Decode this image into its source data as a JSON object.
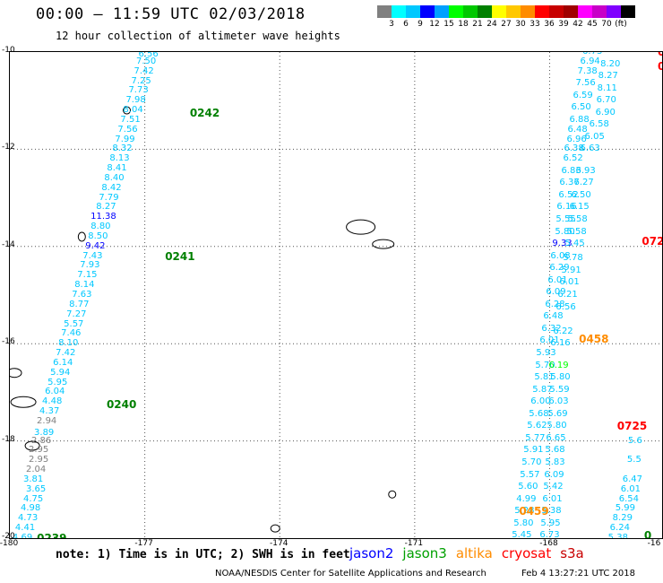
{
  "title": "00:00 – 11:59 UTC 02/03/2018",
  "subtitle": "12 hour collection of altimeter wave heights",
  "legend": {
    "colors": [
      "#808080",
      "#00ffff",
      "#00c8ff",
      "#0000ff",
      "#00a0ff",
      "#00ff00",
      "#00c800",
      "#008000",
      "#ffff00",
      "#ffc800",
      "#ff8c00",
      "#ff0000",
      "#c80000",
      "#a00000",
      "#ff00ff",
      "#c800c8",
      "#8000ff",
      "#000000"
    ],
    "ticks": [
      "3",
      "6",
      "9",
      "12",
      "15",
      "18",
      "21",
      "24",
      "27",
      "30",
      "33",
      "36",
      "39",
      "42",
      "45",
      "70",
      "(ft)"
    ]
  },
  "axes": {
    "lat_labels": [
      "-10",
      "-12",
      "-14",
      "-16",
      "-18",
      "-20"
    ],
    "lon_labels": [
      "-180",
      "-177",
      "-174",
      "-171",
      "-168",
      "-16"
    ]
  },
  "chart_data": {
    "type": "scatter",
    "description_units": "SWH in feet",
    "passes": [
      {
        "id": "0242",
        "satellite": "jason3"
      },
      {
        "id": "0241",
        "satellite": "jason3"
      },
      {
        "id": "0240",
        "satellite": "jason3"
      },
      {
        "id": "0239",
        "satellite": "jason3"
      },
      {
        "id": "0458",
        "satellite": "altika"
      },
      {
        "id": "0459",
        "satellite": "altika"
      },
      {
        "id": "045",
        "satellite": "altika"
      },
      {
        "id": "0724",
        "satellite": "cryosat"
      },
      {
        "id": "0725",
        "satellite": "cryosat"
      },
      {
        "id": "072",
        "satellite": "cryosat"
      }
    ],
    "track_west": [
      {
        "v": "6.56",
        "lon": -176.92,
        "lat": -10.05
      },
      {
        "v": "7.50",
        "lon": -176.97,
        "lat": -10.2
      },
      {
        "v": "7.42",
        "lon": -177.02,
        "lat": -10.4
      },
      {
        "v": "7.25",
        "lon": -177.08,
        "lat": -10.6
      },
      {
        "v": "7.73",
        "lon": -177.14,
        "lat": -10.8
      },
      {
        "v": "7.98",
        "lon": -177.2,
        "lat": -11.0
      },
      {
        "v": "8.04",
        "lon": -177.26,
        "lat": -11.2
      },
      {
        "v": "7.51",
        "lon": -177.32,
        "lat": -11.4
      },
      {
        "v": "7.56",
        "lon": -177.38,
        "lat": -11.6
      },
      {
        "v": "7.99",
        "lon": -177.44,
        "lat": -11.8
      },
      {
        "v": "8.32",
        "lon": -177.5,
        "lat": -12.0
      },
      {
        "v": "8.13",
        "lon": -177.56,
        "lat": -12.2
      },
      {
        "v": "8.41",
        "lon": -177.62,
        "lat": -12.4
      },
      {
        "v": "8.40",
        "lon": -177.68,
        "lat": -12.6
      },
      {
        "v": "8.42",
        "lon": -177.74,
        "lat": -12.8
      },
      {
        "v": "7.79",
        "lon": -177.8,
        "lat": -13.0
      },
      {
        "v": "8.27",
        "lon": -177.86,
        "lat": -13.2
      },
      {
        "v": "11.38",
        "lon": -177.92,
        "lat": -13.4,
        "c": "#0000ff"
      },
      {
        "v": "8.80",
        "lon": -177.98,
        "lat": -13.6
      },
      {
        "v": "8.50",
        "lon": -178.04,
        "lat": -13.8
      },
      {
        "v": "9.42",
        "lon": -178.1,
        "lat": -14.0,
        "c": "#0000ff"
      },
      {
        "v": "7.43",
        "lon": -178.16,
        "lat": -14.2
      },
      {
        "v": "7.93",
        "lon": -178.22,
        "lat": -14.4
      },
      {
        "v": "7.15",
        "lon": -178.28,
        "lat": -14.6
      },
      {
        "v": "8.14",
        "lon": -178.34,
        "lat": -14.8
      },
      {
        "v": "7.63",
        "lon": -178.4,
        "lat": -15.0
      },
      {
        "v": "8.77",
        "lon": -178.46,
        "lat": -15.2
      },
      {
        "v": "7.27",
        "lon": -178.52,
        "lat": -15.4
      },
      {
        "v": "5.57",
        "lon": -178.58,
        "lat": -15.6
      },
      {
        "v": "7.46",
        "lon": -178.64,
        "lat": -15.8
      },
      {
        "v": "8.10",
        "lon": -178.7,
        "lat": -16.0
      },
      {
        "v": "7.42",
        "lon": -178.76,
        "lat": -16.2
      },
      {
        "v": "6.14",
        "lon": -178.82,
        "lat": -16.4
      },
      {
        "v": "5.94",
        "lon": -178.88,
        "lat": -16.6
      },
      {
        "v": "5.95",
        "lon": -178.94,
        "lat": -16.8
      },
      {
        "v": "6.04",
        "lon": -179.0,
        "lat": -17.0
      },
      {
        "v": "4.48",
        "lon": -179.06,
        "lat": -17.2
      },
      {
        "v": "4.37",
        "lon": -179.12,
        "lat": -17.4
      },
      {
        "v": "2.94",
        "lon": -179.18,
        "lat": -17.6,
        "c": "#808080"
      },
      {
        "v": "3.89",
        "lon": -179.24,
        "lat": -17.85
      },
      {
        "v": "2.86",
        "lon": -179.3,
        "lat": -18.0,
        "c": "#808080"
      },
      {
        "v": "2.95",
        "lon": -179.36,
        "lat": -18.2,
        "c": "#808080"
      },
      {
        "v": "2.95",
        "lon": -179.36,
        "lat": -18.4,
        "c": "#808080"
      },
      {
        "v": "2.04",
        "lon": -179.42,
        "lat": -18.6,
        "c": "#808080"
      },
      {
        "v": "3.81",
        "lon": -179.48,
        "lat": -18.8
      },
      {
        "v": "3.65",
        "lon": -179.42,
        "lat": -19.0
      },
      {
        "v": "4.75",
        "lon": -179.48,
        "lat": -19.2
      },
      {
        "v": "4.98",
        "lon": -179.54,
        "lat": -19.4
      },
      {
        "v": "4.73",
        "lon": -179.6,
        "lat": -19.6
      },
      {
        "v": "4.41",
        "lon": -179.66,
        "lat": -19.8
      },
      {
        "v": "4.69",
        "lon": -179.72,
        "lat": -20.0
      }
    ],
    "track_east": [
      {
        "v": "6.73",
        "lon": -167.05,
        "lat": -10.0
      },
      {
        "v": "6.94",
        "lon": -167.1,
        "lat": -10.2
      },
      {
        "v": "7.38",
        "lon": -167.16,
        "lat": -10.4
      },
      {
        "v": "7.56",
        "lon": -167.2,
        "lat": -10.65
      },
      {
        "v": "6.59",
        "lon": -167.26,
        "lat": -10.9
      },
      {
        "v": "6.50",
        "lon": -167.3,
        "lat": -11.15
      },
      {
        "v": "6.88",
        "lon": -167.34,
        "lat": -11.4
      },
      {
        "v": "6.48",
        "lon": -167.38,
        "lat": -11.6
      },
      {
        "v": "6.96",
        "lon": -167.4,
        "lat": -11.8
      },
      {
        "v": "6.38",
        "lon": -167.46,
        "lat": -12.0
      },
      {
        "v": "6.52",
        "lon": -167.48,
        "lat": -12.2
      },
      {
        "v": "6.83",
        "lon": -167.52,
        "lat": -12.45
      },
      {
        "v": "6.37",
        "lon": -167.56,
        "lat": -12.7
      },
      {
        "v": "6.52",
        "lon": -167.58,
        "lat": -12.95
      },
      {
        "v": "6.16",
        "lon": -167.62,
        "lat": -13.2
      },
      {
        "v": "5.55",
        "lon": -167.64,
        "lat": -13.45
      },
      {
        "v": "5.80",
        "lon": -167.66,
        "lat": -13.7
      },
      {
        "v": "9.33",
        "lon": -167.72,
        "lat": -13.95,
        "c": "#0000ff"
      },
      {
        "v": "6.08",
        "lon": -167.76,
        "lat": -14.2
      },
      {
        "v": "6.29",
        "lon": -167.78,
        "lat": -14.45
      },
      {
        "v": "6.01",
        "lon": -167.82,
        "lat": -14.7
      },
      {
        "v": "6.09",
        "lon": -167.86,
        "lat": -14.95
      },
      {
        "v": "6.28",
        "lon": -167.88,
        "lat": -15.2
      },
      {
        "v": "6.48",
        "lon": -167.92,
        "lat": -15.45
      },
      {
        "v": "6.32",
        "lon": -167.96,
        "lat": -15.7
      },
      {
        "v": "6.01",
        "lon": -168.0,
        "lat": -15.95
      },
      {
        "v": "5.93",
        "lon": -168.08,
        "lat": -16.2
      },
      {
        "v": "5.70",
        "lon": -168.1,
        "lat": -16.45
      },
      {
        "v": "5.81",
        "lon": -168.12,
        "lat": -16.7
      },
      {
        "v": "5.87",
        "lon": -168.16,
        "lat": -16.95
      },
      {
        "v": "6.00",
        "lon": -168.2,
        "lat": -17.2
      },
      {
        "v": "5.68",
        "lon": -168.24,
        "lat": -17.45
      },
      {
        "v": "5.62",
        "lon": -168.28,
        "lat": -17.7
      },
      {
        "v": "5.77",
        "lon": -168.32,
        "lat": -17.95
      },
      {
        "v": "5.91",
        "lon": -168.36,
        "lat": -18.2
      },
      {
        "v": "5.70",
        "lon": -168.4,
        "lat": -18.45
      },
      {
        "v": "5.57",
        "lon": -168.44,
        "lat": -18.7
      },
      {
        "v": "5.60",
        "lon": -168.48,
        "lat": -18.95
      },
      {
        "v": "4.99",
        "lon": -168.52,
        "lat": -19.2
      },
      {
        "v": "5.28",
        "lon": -168.56,
        "lat": -19.45
      },
      {
        "v": "5.80",
        "lon": -168.58,
        "lat": -19.7
      },
      {
        "v": "5.45",
        "lon": -168.62,
        "lat": -19.95
      }
    ],
    "track_east2": [
      {
        "v": "8.20",
        "lon": -166.65,
        "lat": -10.25
      },
      {
        "v": "8.27",
        "lon": -166.7,
        "lat": -10.5
      },
      {
        "v": "8.11",
        "lon": -166.72,
        "lat": -10.75
      },
      {
        "v": "6.70",
        "lon": -166.74,
        "lat": -11.0
      },
      {
        "v": "6.90",
        "lon": -166.76,
        "lat": -11.25
      },
      {
        "v": "6.58",
        "lon": -166.9,
        "lat": -11.5
      },
      {
        "v": "6.05",
        "lon": -167.0,
        "lat": -11.75
      },
      {
        "v": "6.63",
        "lon": -167.1,
        "lat": -12.0
      },
      {
        "v": "6.93",
        "lon": -167.2,
        "lat": -12.45
      },
      {
        "v": "6.27",
        "lon": -167.24,
        "lat": -12.7
      },
      {
        "v": "6.50",
        "lon": -167.3,
        "lat": -12.95
      },
      {
        "v": "6.15",
        "lon": -167.34,
        "lat": -13.2
      },
      {
        "v": "5.58",
        "lon": -167.38,
        "lat": -13.45
      },
      {
        "v": "5.58",
        "lon": -167.4,
        "lat": -13.7
      },
      {
        "v": "5.45",
        "lon": -167.44,
        "lat": -13.95
      },
      {
        "v": "5.78",
        "lon": -167.48,
        "lat": -14.25
      },
      {
        "v": "5.91",
        "lon": -167.52,
        "lat": -14.5
      },
      {
        "v": "6.01",
        "lon": -167.56,
        "lat": -14.75
      },
      {
        "v": "6.21",
        "lon": -167.6,
        "lat": -15.0
      },
      {
        "v": "6.56",
        "lon": -167.64,
        "lat": -15.25
      },
      {
        "v": "6.22",
        "lon": -167.7,
        "lat": -15.75
      },
      {
        "v": "6.16",
        "lon": -167.76,
        "lat": -16.0
      },
      {
        "v": "6.19",
        "lon": -167.8,
        "lat": -16.45,
        "c": "#00ff00"
      },
      {
        "v": "5.80",
        "lon": -167.76,
        "lat": -16.7
      },
      {
        "v": "5.59",
        "lon": -167.78,
        "lat": -16.95
      },
      {
        "v": "6.03",
        "lon": -167.8,
        "lat": -17.2
      },
      {
        "v": "5.69",
        "lon": -167.82,
        "lat": -17.45
      },
      {
        "v": "5.80",
        "lon": -167.84,
        "lat": -17.7
      },
      {
        "v": "6.65",
        "lon": -167.86,
        "lat": -17.95
      },
      {
        "v": "5.68",
        "lon": -167.88,
        "lat": -18.2
      },
      {
        "v": "5.83",
        "lon": -167.88,
        "lat": -18.45
      },
      {
        "v": "6.09",
        "lon": -167.9,
        "lat": -18.7
      },
      {
        "v": "5.42",
        "lon": -167.92,
        "lat": -18.95
      },
      {
        "v": "6.01",
        "lon": -167.94,
        "lat": -19.2
      },
      {
        "v": "5.38",
        "lon": -167.96,
        "lat": -19.45
      },
      {
        "v": "5.95",
        "lon": -167.98,
        "lat": -19.7
      },
      {
        "v": "6.73",
        "lon": -168.0,
        "lat": -19.95
      }
    ],
    "track_far_east": [
      {
        "v": "5.6",
        "lon": -166.1,
        "lat": -18.0
      },
      {
        "v": "5.5",
        "lon": -166.12,
        "lat": -18.4
      },
      {
        "v": "6.47",
        "lon": -166.16,
        "lat": -18.8
      },
      {
        "v": "6.01",
        "lon": -166.2,
        "lat": -19.0
      },
      {
        "v": "6.54",
        "lon": -166.24,
        "lat": -19.2
      },
      {
        "v": "5.99",
        "lon": -166.32,
        "lat": -19.4
      },
      {
        "v": "8.29",
        "lon": -166.38,
        "lat": -19.6
      },
      {
        "v": "6.24",
        "lon": -166.44,
        "lat": -19.8
      },
      {
        "v": "5.38",
        "lon": -166.48,
        "lat": -20.0
      }
    ],
    "pass_labels": [
      {
        "text": "0242",
        "lon": -176.0,
        "lat": -11.25,
        "c": "#008000"
      },
      {
        "text": "0241",
        "lon": -176.55,
        "lat": -14.2,
        "c": "#008000"
      },
      {
        "text": "0240",
        "lon": -177.85,
        "lat": -17.25,
        "c": "#008000"
      },
      {
        "text": "0239",
        "lon": -179.4,
        "lat": -20.0,
        "c": "#008000"
      },
      {
        "text": "0724",
        "lon": -165.95,
        "lat": -13.9,
        "c": "#ff0000"
      },
      {
        "text": "0725",
        "lon": -166.5,
        "lat": -17.7,
        "c": "#ff0000"
      },
      {
        "text": "072",
        "lon": -165.6,
        "lat": -10.0,
        "c": "#ff0000"
      },
      {
        "text": "072",
        "lon": -165.6,
        "lat": -10.3,
        "c": "#ff0000"
      },
      {
        "text": "0458",
        "lon": -167.35,
        "lat": -15.9,
        "c": "#ff8c00"
      },
      {
        "text": "0459",
        "lon": -168.68,
        "lat": -19.45,
        "c": "#ff8c00"
      },
      {
        "text": "045",
        "lon": -165.5,
        "lat": -12.15,
        "c": "#ff8c00"
      },
      {
        "text": "0",
        "lon": -165.9,
        "lat": -19.95,
        "c": "#008000"
      }
    ]
  },
  "note": "note: 1) Time is in UTC; 2) SWH is in feet",
  "satellites": [
    {
      "name": "jason2",
      "color": "#0000ff"
    },
    {
      "name": "jason3",
      "color": "#00a000"
    },
    {
      "name": "altika",
      "color": "#ff8c00"
    },
    {
      "name": "cryosat",
      "color": "#ff0000"
    },
    {
      "name": "s3a",
      "color": "#c80000"
    }
  ],
  "footer": "NOAA/NESDIS Center for Satellite Applications and Research",
  "footer_time": "Feb  4 13:27:21 UTC 2018"
}
